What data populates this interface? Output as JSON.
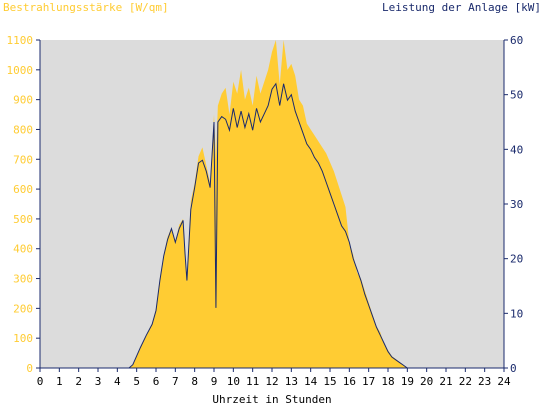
{
  "chart_data": {
    "type": "area",
    "left_axis_label": "Bestrahlungsstärke [W/qm]",
    "right_axis_label": "Leistung der Anlage [kW]",
    "xlabel": "Uhrzeit in Stunden",
    "x_ticks": [
      "0",
      "1",
      "2",
      "3",
      "4",
      "5",
      "6",
      "7",
      "8",
      "9",
      "10",
      "11",
      "12",
      "13",
      "14",
      "15",
      "16",
      "17",
      "18",
      "19",
      "20",
      "21",
      "22",
      "23",
      "24"
    ],
    "left_ticks": [
      "0",
      "100",
      "200",
      "300",
      "400",
      "500",
      "600",
      "700",
      "800",
      "900",
      "1000",
      "1100"
    ],
    "right_ticks": [
      "0",
      "10",
      "20",
      "30",
      "40",
      "50",
      "60"
    ],
    "xlim": [
      0,
      24
    ],
    "left_ylim": [
      0,
      1100
    ],
    "right_ylim": [
      0,
      60
    ],
    "grid": false,
    "series": [
      {
        "name": "Bestrahlungsstärke [W/qm]",
        "axis": "left",
        "color": "#ffcc33",
        "x": [
          0,
          4.6,
          4.8,
          5.0,
          5.2,
          5.5,
          5.8,
          6.0,
          6.2,
          6.4,
          6.6,
          6.8,
          7.0,
          7.2,
          7.4,
          7.5,
          7.6,
          7.8,
          8.0,
          8.2,
          8.4,
          8.6,
          8.8,
          9.0,
          9.1,
          9.2,
          9.4,
          9.6,
          9.8,
          10.0,
          10.2,
          10.4,
          10.6,
          10.8,
          11.0,
          11.2,
          11.4,
          11.6,
          11.8,
          12.0,
          12.2,
          12.4,
          12.6,
          12.8,
          13.0,
          13.2,
          13.4,
          13.6,
          13.8,
          14.0,
          14.2,
          14.4,
          14.6,
          14.8,
          15.0,
          15.2,
          15.4,
          15.6,
          15.8,
          16.0,
          16.2,
          16.4,
          16.6,
          16.8,
          17.0,
          17.2,
          17.4,
          17.6,
          17.8,
          18.0,
          18.2,
          18.4,
          18.6,
          18.8,
          19.0,
          19.2,
          19.4,
          19.6,
          19.8,
          20.0,
          20.2,
          20.4,
          20.6,
          24
        ],
        "values": [
          0,
          0,
          10,
          40,
          70,
          110,
          150,
          200,
          300,
          380,
          440,
          470,
          420,
          480,
          500,
          380,
          290,
          560,
          620,
          710,
          740,
          680,
          620,
          850,
          700,
          880,
          920,
          940,
          850,
          960,
          920,
          1000,
          900,
          940,
          880,
          980,
          920,
          960,
          1000,
          1060,
          1100,
          950,
          1100,
          1000,
          1020,
          980,
          900,
          880,
          820,
          800,
          780,
          760,
          740,
          720,
          690,
          660,
          620,
          580,
          540,
          420,
          380,
          320,
          300,
          260,
          220,
          180,
          140,
          120,
          80,
          60,
          40,
          30,
          20,
          10,
          0,
          0,
          0,
          0,
          0,
          0,
          0,
          0,
          0,
          0
        ]
      },
      {
        "name": "Leistung der Anlage [kW]",
        "axis": "right",
        "color": "#1a2a6c",
        "x": [
          0,
          4.6,
          4.8,
          5.0,
          5.2,
          5.5,
          5.8,
          6.0,
          6.2,
          6.4,
          6.6,
          6.8,
          7.0,
          7.2,
          7.4,
          7.5,
          7.6,
          7.8,
          8.0,
          8.2,
          8.4,
          8.6,
          8.8,
          9.0,
          9.1,
          9.2,
          9.4,
          9.6,
          9.8,
          10.0,
          10.2,
          10.4,
          10.6,
          10.8,
          11.0,
          11.2,
          11.4,
          11.6,
          11.8,
          12.0,
          12.2,
          12.4,
          12.6,
          12.8,
          13.0,
          13.2,
          13.4,
          13.6,
          13.8,
          14.0,
          14.2,
          14.4,
          14.6,
          14.8,
          15.0,
          15.2,
          15.4,
          15.6,
          15.8,
          16.0,
          16.2,
          16.4,
          16.6,
          16.8,
          17.0,
          17.2,
          17.4,
          17.6,
          17.8,
          18.0,
          18.2,
          18.4,
          18.6,
          18.8,
          19.0,
          19.2,
          19.4,
          19.6,
          19.8,
          20.0,
          20.2,
          20.4,
          20.6,
          24
        ],
        "values": [
          0,
          0,
          0.6,
          2.2,
          3.8,
          6,
          8,
          10.5,
          16,
          20.5,
          23.5,
          25.5,
          23,
          25.5,
          27,
          21,
          16,
          29,
          33,
          37.5,
          38,
          36,
          33,
          45,
          11,
          45,
          46,
          45.5,
          43.5,
          47.5,
          44,
          47,
          44,
          46.5,
          43.5,
          47.5,
          45,
          46.5,
          48,
          51,
          52,
          48,
          52,
          49,
          50,
          47,
          45,
          43,
          41,
          40,
          38.5,
          37.5,
          36,
          34,
          32,
          30,
          28,
          26,
          25,
          23,
          20,
          18,
          16,
          13.5,
          11.5,
          9.5,
          7.5,
          6,
          4.5,
          3,
          2,
          1.5,
          1,
          0.5,
          0,
          0,
          0,
          0,
          0,
          0,
          0,
          0,
          0,
          0
        ]
      }
    ]
  }
}
